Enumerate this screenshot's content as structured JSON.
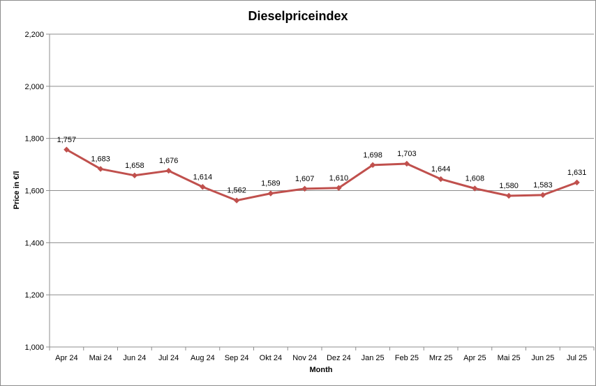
{
  "chart_data": {
    "type": "line",
    "title": "Dieselpriceindex",
    "xlabel": "Month",
    "ylabel": "Price in €/l",
    "categories": [
      "Apr 24",
      "Mai 24",
      "Jun 24",
      "Jul 24",
      "Aug 24",
      "Sep 24",
      "Okt 24",
      "Nov 24",
      "Dez 24",
      "Jan 25",
      "Feb 25",
      "Mrz 25",
      "Apr 25",
      "Mai 25",
      "Jun 25",
      "Jul 25"
    ],
    "series": [
      {
        "values": [
          1.757,
          1.683,
          1.658,
          1.676,
          1.614,
          1.562,
          1.589,
          1.607,
          1.61,
          1.698,
          1.703,
          1.644,
          1.608,
          1.58,
          1.583,
          1.631
        ],
        "data_labels": [
          "1,757",
          "1,683",
          "1,658",
          "1,676",
          "1,614",
          "1,562",
          "1,589",
          "1,607",
          "1,610",
          "1,698",
          "1,703",
          "1,644",
          "1,608",
          "1,580",
          "1,583",
          "1,631"
        ],
        "color": "#c0504d"
      }
    ],
    "ylim": [
      1.0,
      2.2
    ],
    "yticks": [
      1.0,
      1.2,
      1.4,
      1.6,
      1.8,
      2.0,
      2.2
    ],
    "ytick_labels": [
      "1,000",
      "1,200",
      "1,400",
      "1,600",
      "1,800",
      "2,000",
      "2,200"
    ],
    "grid": true,
    "legend": false,
    "colors": {
      "line": "#c0504d",
      "grid": "#8c8c8c",
      "axis": "#8c8c8c"
    }
  }
}
